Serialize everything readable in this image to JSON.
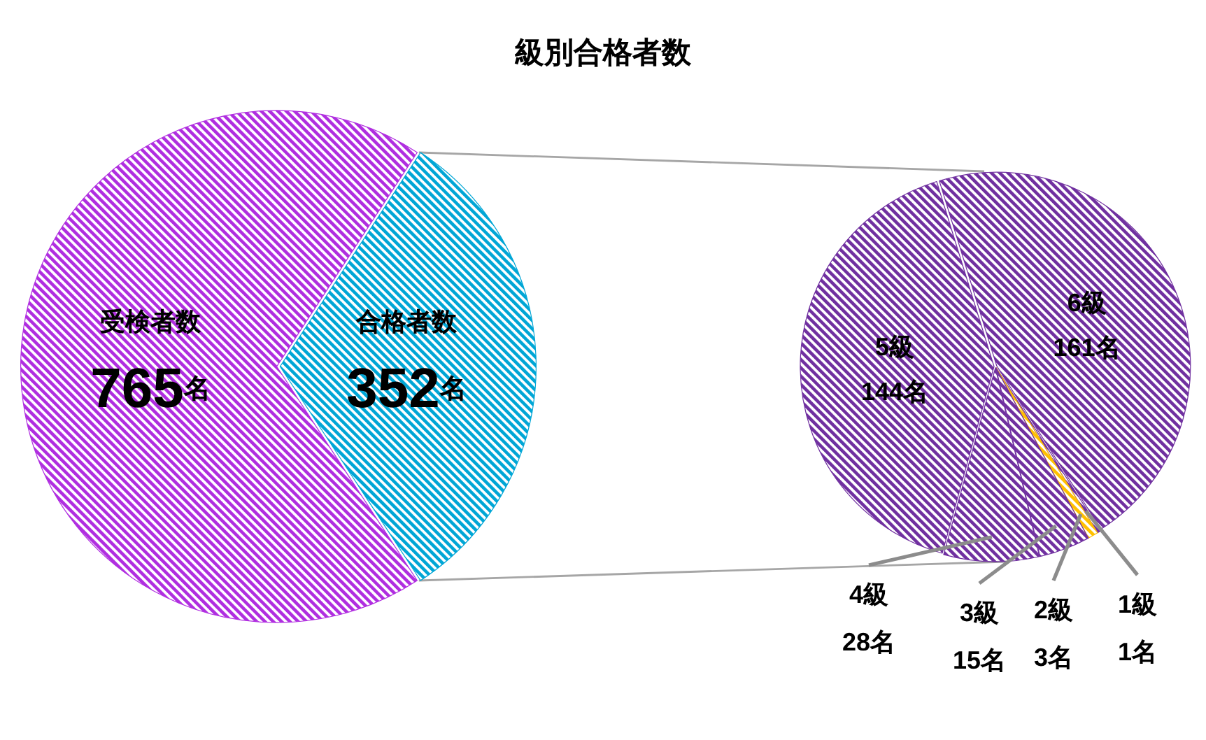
{
  "chart_data": [
    {
      "type": "pie",
      "title": "級別合格者数",
      "categories": [
        "受検者数",
        "合格者数"
      ],
      "values": [
        765,
        352
      ],
      "value_labels": [
        "765名",
        "352名"
      ],
      "colors": [
        "#b02ee0",
        "#00a6d6"
      ]
    },
    {
      "type": "pie",
      "categories": [
        "5級",
        "6級",
        "1級",
        "2級",
        "3級",
        "4級"
      ],
      "values": [
        144,
        161,
        1,
        3,
        15,
        28
      ],
      "value_labels": [
        "144名",
        "161名",
        "1名",
        "3名",
        "15名",
        "28名"
      ],
      "colors": [
        "#7030a0",
        "#7030a0",
        "#7030a0",
        "#ffc000",
        "#7030a0",
        "#7030a0"
      ]
    }
  ]
}
